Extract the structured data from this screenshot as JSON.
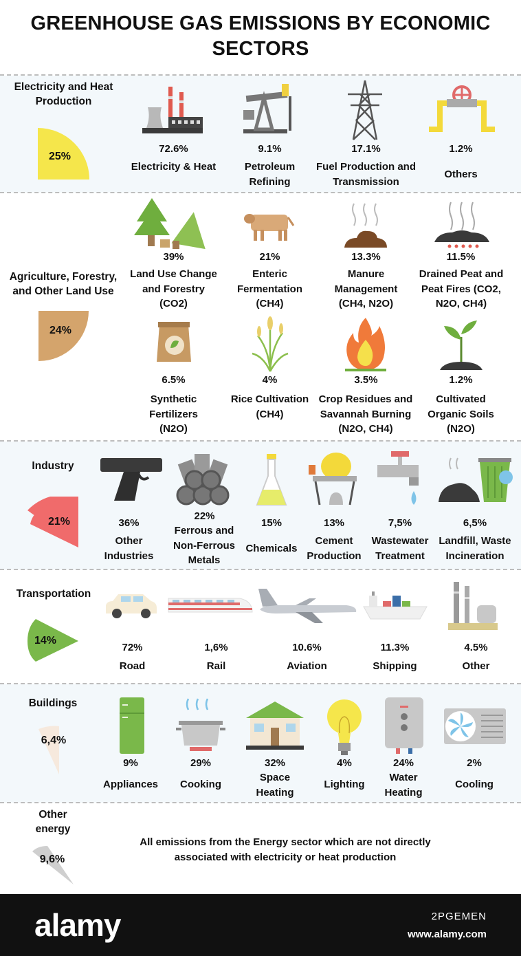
{
  "title_line1": "GREENHOUSE GAS EMISSIONS BY ECONOMIC",
  "title_line2": "SECTORS",
  "chart_data": {
    "type": "pie",
    "title": "GREENHOUSE GAS EMISSIONS BY ECONOMIC SECTORS",
    "sectors": [
      {
        "name": "Electricity and Heat Production",
        "share_label": "25%",
        "share": 25,
        "color": "#f5e64b",
        "items": [
          {
            "value": "72.6%",
            "label": "Electricity & Heat",
            "icon": "factory-icon"
          },
          {
            "value": "9.1%",
            "label": "Petroleum Refining",
            "icon": "oil-pump-icon"
          },
          {
            "value": "17.1%",
            "label": "Fuel Production and Transmission",
            "icon": "power-tower-icon"
          },
          {
            "value": "1.2%",
            "label": "Others",
            "icon": "pipe-valve-icon"
          }
        ]
      },
      {
        "name": "Agriculture, Forestry, and Other Land Use",
        "share_label": "24%",
        "share": 24,
        "color": "#d4a46c",
        "items": [
          {
            "value": "39%",
            "label": "Land Use Change and Forestry (CO2)",
            "icon": "trees-icon"
          },
          {
            "value": "21%",
            "label": "Enteric Fermentation (CH4)",
            "icon": "cow-icon"
          },
          {
            "value": "13.3%",
            "label": "Manure Management (CH4, N2O)",
            "icon": "manure-icon"
          },
          {
            "value": "11.5%",
            "label": "Drained Peat and Peat Fires (CO2, N2O, CH4)",
            "icon": "peat-icon"
          },
          {
            "value": "6.5%",
            "label": "Synthetic Fertilizers (N2O)",
            "icon": "fertilizer-bag-icon"
          },
          {
            "value": "4%",
            "label": "Rice Cultivation (CH4)",
            "icon": "rice-icon"
          },
          {
            "value": "3.5%",
            "label": "Crop Residues and Savannah Burning (N2O, CH4)",
            "icon": "fire-icon"
          },
          {
            "value": "1.2%",
            "label": "Cultivated Organic Soils (N2O)",
            "icon": "sprout-icon"
          }
        ]
      },
      {
        "name": "Industry",
        "share_label": "21%",
        "share": 21,
        "color": "#f06b6b",
        "items": [
          {
            "value": "36%",
            "label": "Other Industries",
            "icon": "pistol-icon"
          },
          {
            "value": "22%",
            "label": "Ferrous and Non-Ferrous Metals",
            "icon": "pipes-icon"
          },
          {
            "value": "15%",
            "label": "Chemicals",
            "icon": "flask-icon"
          },
          {
            "value": "13%",
            "label": "Cement Production",
            "icon": "cement-mixer-icon"
          },
          {
            "value": "7,5%",
            "label": "Wastewater Treatment",
            "icon": "faucet-icon"
          },
          {
            "value": "6,5%",
            "label": "Landfill, Waste Incineration",
            "icon": "waste-bin-icon"
          }
        ]
      },
      {
        "name": "Transportation",
        "share_label": "14%",
        "share": 14,
        "color": "#7ab84a",
        "items": [
          {
            "value": "72%",
            "label": "Road",
            "icon": "car-icon"
          },
          {
            "value": "1,6%",
            "label": "Rail",
            "icon": "train-icon"
          },
          {
            "value": "10.6%",
            "label": "Aviation",
            "icon": "airplane-icon"
          },
          {
            "value": "11.3%",
            "label": "Shipping",
            "icon": "cargo-ship-icon"
          },
          {
            "value": "4.5%",
            "label": "Other",
            "icon": "refinery-icon"
          }
        ]
      },
      {
        "name": "Buildings",
        "share_label": "6,4%",
        "share": 6.4,
        "color": "#f6e9dd",
        "items": [
          {
            "value": "9%",
            "label": "Appliances",
            "icon": "fridge-icon"
          },
          {
            "value": "29%",
            "label": "Cooking",
            "icon": "cooking-pot-icon"
          },
          {
            "value": "32%",
            "label": "Space Heating",
            "icon": "house-icon"
          },
          {
            "value": "4%",
            "label": "Lighting",
            "icon": "light-bulb-icon"
          },
          {
            "value": "24%",
            "label": "Water Heating",
            "icon": "water-heater-icon"
          },
          {
            "value": "2%",
            "label": "Cooling",
            "icon": "air-conditioner-icon"
          }
        ]
      },
      {
        "name": "Other energy",
        "share_label": "9,6%",
        "share": 9.6,
        "color": "#cfcfcf",
        "note": "All emissions from the Energy sector which are not directly associated with electricity or heat production"
      }
    ]
  },
  "footer": {
    "brand": "alamy",
    "image_code": "2PGEMEN",
    "website": "www.alamy.com"
  }
}
